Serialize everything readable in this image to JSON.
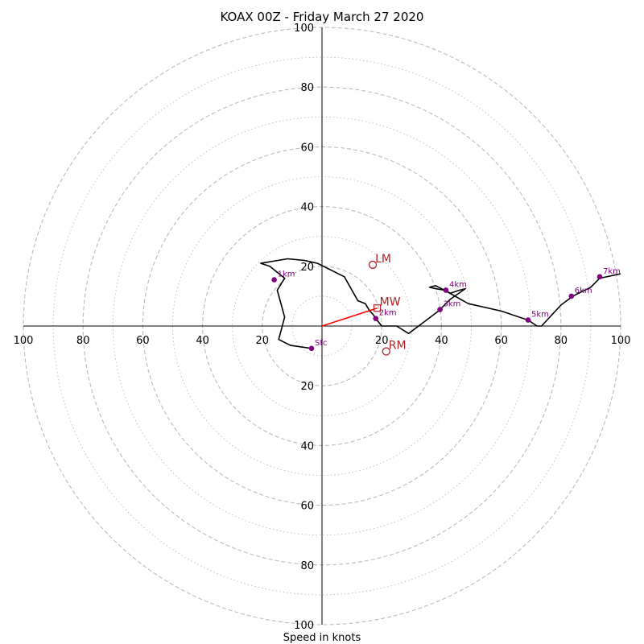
{
  "chart_data": {
    "type": "hodograph",
    "title": "KOAX 00Z - Friday March 27 2020",
    "xlabel": "Speed in knots",
    "xlim": [
      -100,
      100
    ],
    "ylim": [
      -100,
      100
    ],
    "rings": [
      10,
      20,
      30,
      40,
      50,
      60,
      70,
      80,
      90,
      100
    ],
    "tick_labels": [
      "20",
      "40",
      "60",
      "80",
      "100"
    ],
    "colors": {
      "profile": "#000000",
      "height_marker": "#800080",
      "motion": "#b22222",
      "mean_wind_vector": "#ff0000",
      "grid": "#bbbbbb"
    },
    "profile": [
      [
        -3.5,
        -7.5
      ],
      [
        -10.5,
        -6.5
      ],
      [
        -14.5,
        -4.5
      ],
      [
        -12.5,
        3
      ],
      [
        -15,
        12
      ],
      [
        -12.5,
        16
      ],
      [
        -17.5,
        20
      ],
      [
        -20.5,
        21
      ],
      [
        -11.5,
        22.5
      ],
      [
        -6,
        22
      ],
      [
        -1.5,
        21
      ],
      [
        7.5,
        16.5
      ],
      [
        12,
        8.5
      ],
      [
        14.5,
        7.5
      ],
      [
        16,
        5
      ],
      [
        17,
        4
      ],
      [
        18,
        2.5
      ],
      [
        20,
        0
      ],
      [
        25,
        0
      ],
      [
        29,
        -2.5
      ],
      [
        39,
        5
      ],
      [
        43,
        9
      ],
      [
        48,
        12.5
      ],
      [
        46,
        12
      ],
      [
        43,
        11
      ],
      [
        38,
        13.5
      ],
      [
        36,
        13
      ],
      [
        38,
        12.5
      ],
      [
        41,
        12
      ],
      [
        49,
        7.5
      ],
      [
        60,
        5
      ],
      [
        69,
        2
      ],
      [
        72,
        0
      ],
      [
        73.5,
        0
      ],
      [
        80,
        7
      ],
      [
        84,
        10
      ],
      [
        90,
        13
      ],
      [
        93,
        16
      ],
      [
        100,
        17.5
      ]
    ],
    "height_markers": [
      {
        "label": "Sfc",
        "u": -3.5,
        "v": -7.5
      },
      {
        "label": "1km",
        "u": -16,
        "v": 15.5
      },
      {
        "label": "2km",
        "u": 18,
        "v": 2.5
      },
      {
        "label": "3km",
        "u": 39.5,
        "v": 5.5
      },
      {
        "label": "4km",
        "u": 41.5,
        "v": 12
      },
      {
        "label": "5km",
        "u": 69,
        "v": 2
      },
      {
        "label": "6km",
        "u": 83.5,
        "v": 10
      },
      {
        "label": "7km",
        "u": 93,
        "v": 16.5
      }
    ],
    "storm_motions": [
      {
        "label": "LM",
        "u": 17,
        "v": 20.5,
        "marker": "circle"
      },
      {
        "label": "MW",
        "u": 18.5,
        "v": 6,
        "marker": "square"
      },
      {
        "label": "RM",
        "u": 21.5,
        "v": -8.5,
        "marker": "circle"
      }
    ],
    "mean_wind_vector": {
      "from": [
        0,
        0
      ],
      "to": [
        18.5,
        6
      ]
    }
  }
}
